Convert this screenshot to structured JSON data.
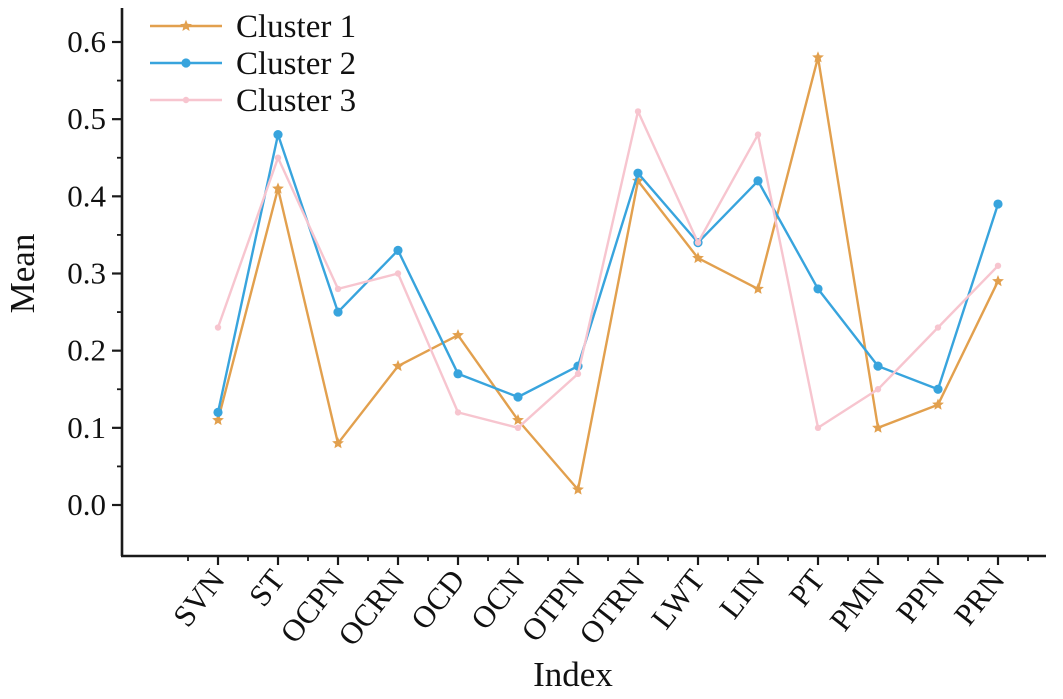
{
  "chart_data": {
    "type": "line",
    "title": "",
    "xlabel": "Index",
    "ylabel": "Mean",
    "categories": [
      "SVN",
      "ST",
      "OCPN",
      "OCRN",
      "OCD",
      "OCN",
      "OTPN",
      "OTRN",
      "LWT",
      "LIN",
      "PT",
      "PMN",
      "PPN",
      "PRN"
    ],
    "series": [
      {
        "name": "Cluster 1",
        "color": "#e2a04e",
        "marker": "star",
        "values": [
          0.11,
          0.41,
          0.08,
          0.18,
          0.22,
          0.11,
          0.02,
          0.42,
          0.32,
          0.28,
          0.58,
          0.1,
          0.13,
          0.29
        ]
      },
      {
        "name": "Cluster 2",
        "color": "#38a4dd",
        "marker": "circle",
        "values": [
          0.12,
          0.48,
          0.25,
          0.33,
          0.17,
          0.14,
          0.18,
          0.43,
          0.34,
          0.42,
          0.28,
          0.18,
          0.15,
          0.39
        ]
      },
      {
        "name": "Cluster 3",
        "color": "#f7c5cf",
        "marker": "dot",
        "values": [
          0.23,
          0.45,
          0.28,
          0.3,
          0.12,
          0.1,
          0.17,
          0.51,
          0.34,
          0.48,
          0.1,
          0.15,
          0.23,
          0.31
        ]
      }
    ],
    "ylim": [
      0.0,
      0.6
    ],
    "yticks": [
      0.0,
      0.1,
      0.2,
      0.3,
      0.4,
      0.5,
      0.6
    ],
    "ytick_labels": [
      "0.0",
      "0.1",
      "0.2",
      "0.3",
      "0.4",
      "0.5",
      "0.6"
    ],
    "legend_position": "top-left",
    "grid": false,
    "axis_color": "#1a1a1a",
    "text_color": "#111111",
    "background_color": "#ffffff"
  }
}
